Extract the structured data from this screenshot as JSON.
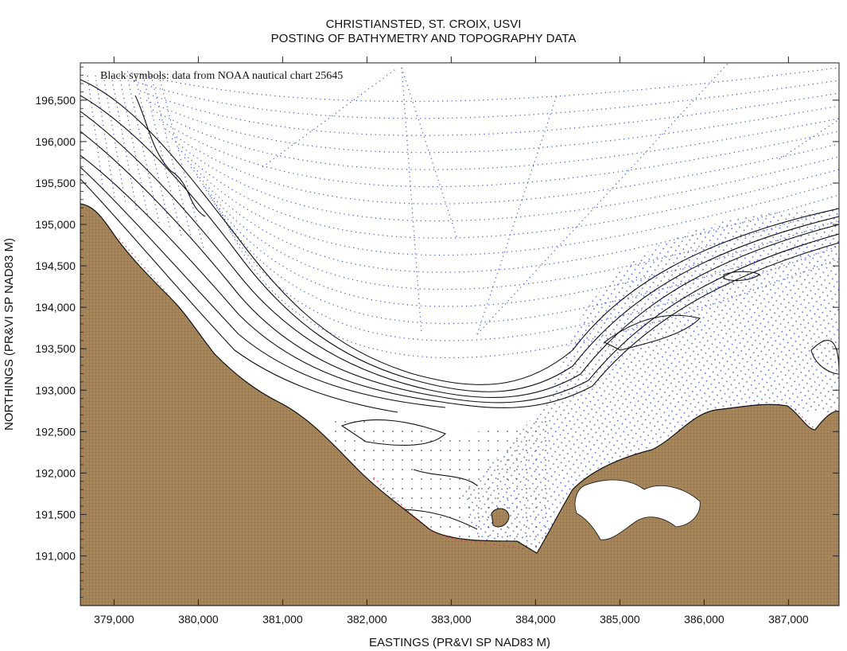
{
  "title": {
    "line1": "CHRISTIANSTED, ST. CROIX, USVI",
    "line2": "POSTING OF BATHYMETRY AND TOPOGRAPHY DATA"
  },
  "annotation": "Black symbols: data from NOAA nautical chart 25645",
  "axes": {
    "x_label": "EASTINGS (PR&VI SP NAD83 M)",
    "y_label": "NORTHINGS (PR&VI SP NAD83 M)",
    "x_range": [
      378600,
      387600
    ],
    "y_range": [
      190400,
      196950
    ],
    "x_ticks": [
      "379,000",
      "380,000",
      "381,000",
      "382,000",
      "383,000",
      "384,000",
      "385,000",
      "386,000",
      "387,000"
    ],
    "y_ticks": [
      "191,000",
      "191,500",
      "192,000",
      "192,500",
      "193,000",
      "193,500",
      "194,000",
      "194,500",
      "195,000",
      "195,500",
      "196,000",
      "196,500"
    ]
  },
  "colors": {
    "land": "#a7865a",
    "land_grid": "#8a6a44",
    "bathy_dots": "#3a55d0",
    "contour": "#111111",
    "shoreline_accent": "#e02020"
  }
}
